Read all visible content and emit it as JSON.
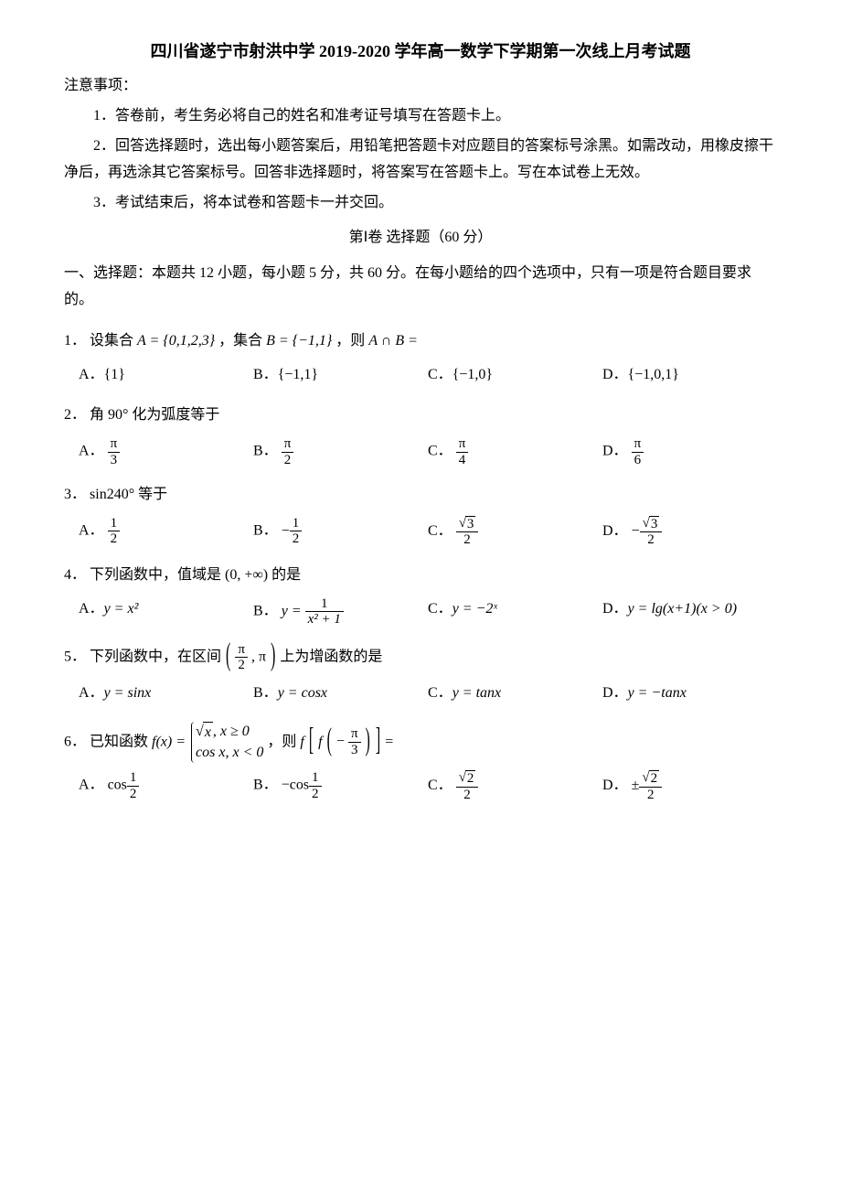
{
  "title": "四川省遂宁市射洪中学 2019-2020 学年高一数学下学期第一次线上月考试题",
  "notice_label": "注意事项：",
  "notices": [
    "1．答卷前，考生务必将自己的姓名和准考证号填写在答题卡上。",
    "2．回答选择题时，选出每小题答案后，用铅笔把答题卡对应题目的答案标号涂黑。如需改动，用橡皮擦干净后，再选涂其它答案标号。回答非选择题时，将答案写在答题卡上。写在本试卷上无效。",
    "3．考试结束后，将本试卷和答题卡一并交回。"
  ],
  "part1": "第Ⅰ卷 选择题（60 分）",
  "section1": "一、选择题：本题共 12 小题，每小题 5 分，共 60 分。在每小题给的四个选项中，只有一项是符合题目要求的。",
  "q1": {
    "n": "1．",
    "pre": "设集合 ",
    "A_eq": "A = {0,1,2,3}",
    "mid1": "，集合 ",
    "B_eq": "B = {−1,1}",
    "mid2": "，则 ",
    "expr": "A ∩ B =",
    "opts": {
      "A": "{1}",
      "B": "{−1,1}",
      "C": "{−1,0}",
      "D": "{−1,0,1}"
    }
  },
  "q2": {
    "n": "2．",
    "text": "角 90° 化为弧度等于",
    "pi": "π",
    "dens": {
      "A": "3",
      "B": "2",
      "C": "4",
      "D": "6"
    }
  },
  "q3": {
    "n": "3．",
    "text": "sin240° 等于",
    "nums": {
      "A": "1",
      "B": "1",
      "C_rad": "3",
      "D_rad": "3"
    },
    "dens": {
      "A": "2",
      "B": "2",
      "C": "2",
      "D": "2"
    },
    "neg_B": "−",
    "neg_D": "−"
  },
  "q4": {
    "n": "4．",
    "text_pre": "下列函数中，值域是 ",
    "range": "(0, +∞)",
    "text_suf": " 的是",
    "opts": {
      "A": "y = x²",
      "B_lhs": "y =",
      "B_num": "1",
      "B_den": "x² + 1",
      "C": "y = −2ˣ",
      "D": "y = lg(x+1)(x > 0)"
    }
  },
  "q5": {
    "n": "5．",
    "text_pre": "下列函数中，在区间",
    "int_num": "π",
    "int_den": "2",
    "int_right": ", π",
    "text_suf": "上为增函数的是",
    "opts": {
      "A": "y = sinx",
      "B": "y = cosx",
      "C": "y = tanx",
      "D": "y = −tanx"
    }
  },
  "q6": {
    "n": "6．",
    "text_pre": "已知函数 ",
    "fx": "f(x) =",
    "row1_pre": "",
    "row1_x": "x",
    "row1_cond": ", x ≥ 0",
    "row2": "cos x, x < 0",
    "mid": "，则 ",
    "f_outer": "f",
    "inner_f": "f",
    "inner_neg": "−",
    "inner_num": "π",
    "inner_den": "3",
    "eq": "=",
    "opts": {
      "A_pre": "cos",
      "A_num": "1",
      "A_den": "2",
      "B_neg": "−",
      "B_pre": "cos",
      "B_num": "1",
      "B_den": "2",
      "C_rad": "2",
      "C_den": "2",
      "D_pm": "±",
      "D_rad": "2",
      "D_den": "2"
    }
  },
  "labels": {
    "A": "A．",
    "B": "B．",
    "C": "C．",
    "D": "D．"
  }
}
